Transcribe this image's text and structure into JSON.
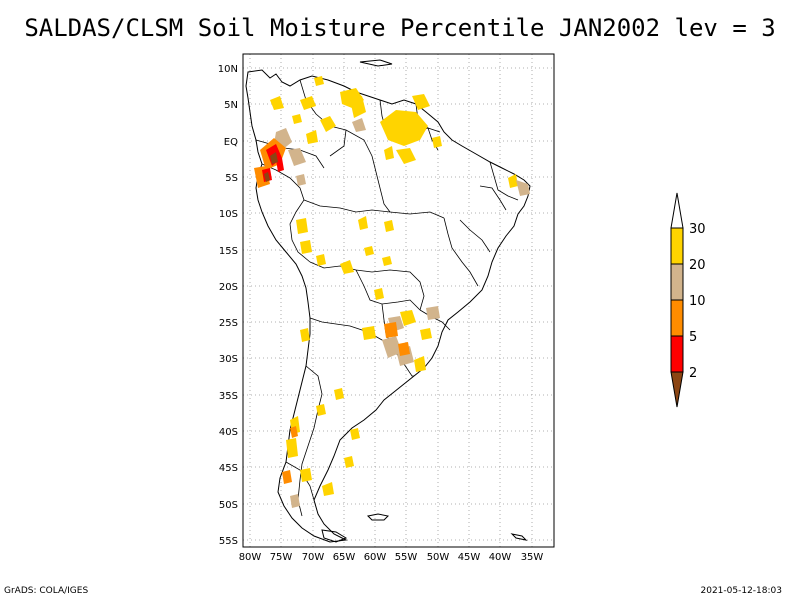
{
  "title": "SALDAS/CLSM Soil Moisture Percentile JAN2002 lev = 3",
  "map": {
    "lat_labels": [
      "10N",
      "5N",
      "EQ",
      "5S",
      "10S",
      "15S",
      "20S",
      "25S",
      "30S",
      "35S",
      "40S",
      "45S",
      "50S",
      "55S"
    ],
    "lon_labels": [
      "80W",
      "75W",
      "70W",
      "65W",
      "60W",
      "55W",
      "50W",
      "45W",
      "40W",
      "35W"
    ]
  },
  "colorbar": {
    "labels": [
      "30",
      "20",
      "10",
      "5",
      "2"
    ],
    "colors": {
      "c30plus": "#ffffff",
      "c20_30": "#ffd400",
      "c10_20": "#d2b48c",
      "c5_10": "#ff8c00",
      "c2_5": "#ff0000",
      "below2": "#8b4513"
    }
  },
  "footer": {
    "left": "GrADS: COLA/IGES",
    "right": "2021-05-12-18:03"
  }
}
